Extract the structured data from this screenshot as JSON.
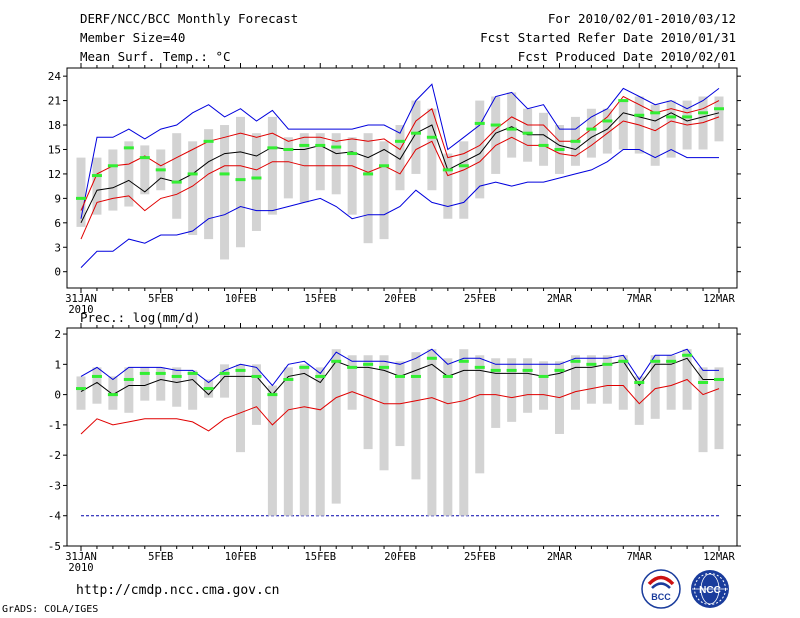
{
  "header": {
    "title": "DERF/NCC/BCC Monthly Forecast",
    "member_size": "Member Size=40",
    "variable": "Mean Surf. Temp.: °C",
    "forecast_for": "For 2010/02/01-2010/03/12",
    "started_refer": "Fcst Started Refer Date 2010/01/31",
    "produced": "Fcst Produced Date 2010/02/01"
  },
  "footer": {
    "url": "http://cmdp.ncc.cma.gov.cn",
    "credit": "GrADS: COLA/IGES",
    "logo_bcc": "BCC",
    "logo_ncc": "NCC"
  },
  "colors": {
    "box": "#d3d3d3",
    "median": "#33ee33",
    "red": "#e00000",
    "blue": "#0000dd",
    "black": "#000000",
    "floor": "#0000aa"
  },
  "chart_data": [
    {
      "type": "line",
      "title": "Mean Surf. Temp.: °C",
      "ylim": [
        -2,
        25
      ],
      "yticks": [
        0,
        3,
        6,
        9,
        12,
        15,
        18,
        21,
        24
      ],
      "xlabels": [
        "31JAN",
        "5FEB",
        "10FEB",
        "15FEB",
        "20FEB",
        "25FEB",
        "2MAR",
        "7MAR",
        "12MAR"
      ],
      "xlabel_days": [
        0,
        5,
        10,
        15,
        20,
        25,
        30,
        35,
        40
      ],
      "year_label": "2010",
      "days": [
        0,
        1,
        2,
        3,
        4,
        5,
        6,
        7,
        8,
        9,
        10,
        11,
        12,
        13,
        14,
        15,
        16,
        17,
        18,
        19,
        20,
        21,
        22,
        23,
        24,
        25,
        26,
        27,
        28,
        29,
        30,
        31,
        32,
        33,
        34,
        35,
        36,
        37,
        38,
        39,
        40
      ],
      "series": [
        {
          "name": "max",
          "color": "blue",
          "values": [
            6.5,
            16.5,
            16.5,
            17.5,
            16.3,
            17.5,
            18.0,
            19.5,
            20.5,
            19.0,
            20.0,
            18.5,
            19.8,
            17.5,
            17.5,
            17.5,
            17.5,
            17.5,
            18.0,
            18.0,
            17.0,
            21.0,
            23.0,
            15.0,
            16.5,
            18.0,
            21.5,
            22.0,
            20.0,
            20.5,
            17.5,
            17.5,
            19.0,
            20.0,
            22.5,
            21.5,
            20.5,
            21.0,
            20.0,
            21.0,
            22.5
          ]
        },
        {
          "name": "upper",
          "color": "red",
          "values": [
            7.5,
            12.0,
            13.0,
            13.2,
            14.2,
            13.0,
            14.0,
            15.0,
            16.0,
            16.5,
            17.0,
            16.5,
            17.0,
            16.0,
            16.5,
            16.5,
            16.0,
            16.3,
            16.0,
            16.3,
            15.0,
            18.5,
            20.0,
            14.0,
            14.5,
            15.5,
            17.5,
            19.0,
            18.0,
            18.0,
            16.0,
            16.0,
            17.5,
            19.0,
            21.5,
            20.5,
            19.5,
            20.0,
            19.5,
            20.0,
            21.0
          ]
        },
        {
          "name": "mean",
          "color": "black",
          "values": [
            6.0,
            10.0,
            10.3,
            11.2,
            9.8,
            11.5,
            11.0,
            12.0,
            13.5,
            14.5,
            14.7,
            14.2,
            15.3,
            15.0,
            15.0,
            15.5,
            14.5,
            14.7,
            14.0,
            15.0,
            13.8,
            17.0,
            18.0,
            12.5,
            13.5,
            14.5,
            17.0,
            17.8,
            16.8,
            16.8,
            15.5,
            15.0,
            16.5,
            17.5,
            19.5,
            19.0,
            18.5,
            19.5,
            18.5,
            19.0,
            19.5
          ]
        },
        {
          "name": "lower",
          "color": "red",
          "values": [
            4.0,
            8.5,
            9.0,
            9.3,
            7.5,
            9.0,
            9.5,
            10.5,
            12.0,
            13.0,
            13.0,
            12.5,
            13.5,
            13.5,
            13.0,
            13.0,
            13.0,
            13.0,
            12.2,
            13.0,
            12.0,
            15.0,
            16.0,
            11.8,
            12.5,
            13.5,
            15.5,
            16.5,
            15.5,
            15.5,
            14.5,
            14.2,
            15.5,
            17.0,
            18.5,
            18.0,
            17.3,
            18.5,
            18.0,
            18.3,
            19.0
          ]
        },
        {
          "name": "min",
          "color": "blue",
          "values": [
            0.5,
            2.5,
            2.5,
            4.0,
            3.5,
            4.5,
            4.5,
            5.0,
            6.5,
            7.0,
            8.0,
            7.5,
            7.5,
            8.0,
            8.5,
            9.0,
            8.0,
            6.5,
            7.0,
            7.0,
            8.0,
            10.0,
            8.5,
            8.0,
            8.5,
            10.5,
            11.0,
            10.5,
            11.0,
            11.0,
            11.5,
            12.0,
            12.5,
            13.5,
            15.0,
            15.0,
            14.0,
            15.0,
            14.0,
            14.0,
            14.0
          ]
        }
      ],
      "boxes": [
        {
          "day": 0,
          "low": 5.5,
          "high": 14.0,
          "median": 9.0
        },
        {
          "day": 1,
          "low": 7.0,
          "high": 14.0,
          "median": 11.8
        },
        {
          "day": 2,
          "low": 7.5,
          "high": 15.0,
          "median": 13.0
        },
        {
          "day": 3,
          "low": 8.0,
          "high": 16.0,
          "median": 15.2
        },
        {
          "day": 4,
          "low": 9.5,
          "high": 15.5,
          "median": 14.0
        },
        {
          "day": 5,
          "low": 10.0,
          "high": 15.0,
          "median": 12.5
        },
        {
          "day": 6,
          "low": 6.5,
          "high": 17.0,
          "median": 11.0
        },
        {
          "day": 7,
          "low": 4.5,
          "high": 16.0,
          "median": 12.0
        },
        {
          "day": 8,
          "low": 4.0,
          "high": 17.5,
          "median": 16.0
        },
        {
          "day": 9,
          "low": 1.5,
          "high": 18.0,
          "median": 12.0
        },
        {
          "day": 10,
          "low": 3.0,
          "high": 19.0,
          "median": 11.3
        },
        {
          "day": 11,
          "low": 5.0,
          "high": 17.0,
          "median": 11.5
        },
        {
          "day": 12,
          "low": 7.0,
          "high": 19.0,
          "median": 15.2
        },
        {
          "day": 13,
          "low": 9.0,
          "high": 16.5,
          "median": 15.0
        },
        {
          "day": 14,
          "low": 8.5,
          "high": 17.0,
          "median": 15.5
        },
        {
          "day": 15,
          "low": 10.0,
          "high": 17.0,
          "median": 15.5
        },
        {
          "day": 16,
          "low": 9.5,
          "high": 17.0,
          "median": 15.3
        },
        {
          "day": 17,
          "low": 7.0,
          "high": 16.5,
          "median": 14.5
        },
        {
          "day": 18,
          "low": 3.5,
          "high": 17.0,
          "median": 12.0
        },
        {
          "day": 19,
          "low": 4.0,
          "high": 16.0,
          "median": 13.0
        },
        {
          "day": 20,
          "low": 10.0,
          "high": 18.0,
          "median": 16.0
        },
        {
          "day": 21,
          "low": 12.0,
          "high": 21.0,
          "median": 17.0
        },
        {
          "day": 22,
          "low": 10.0,
          "high": 20.0,
          "median": 16.5
        },
        {
          "day": 23,
          "low": 6.5,
          "high": 14.5,
          "median": 12.5
        },
        {
          "day": 24,
          "low": 6.5,
          "high": 16.0,
          "median": 13.0
        },
        {
          "day": 25,
          "low": 9.0,
          "high": 21.0,
          "median": 18.2
        },
        {
          "day": 26,
          "low": 12.0,
          "high": 21.5,
          "median": 18.0
        },
        {
          "day": 27,
          "low": 14.0,
          "high": 22.0,
          "median": 17.5
        },
        {
          "day": 28,
          "low": 13.5,
          "high": 20.0,
          "median": 17.0
        },
        {
          "day": 29,
          "low": 13.0,
          "high": 19.5,
          "median": 15.5
        },
        {
          "day": 30,
          "low": 12.0,
          "high": 18.0,
          "median": 15.0
        },
        {
          "day": 31,
          "low": 13.0,
          "high": 19.0,
          "median": 16.0
        },
        {
          "day": 32,
          "low": 14.0,
          "high": 20.0,
          "median": 17.5
        },
        {
          "day": 33,
          "low": 14.5,
          "high": 20.0,
          "median": 18.5
        },
        {
          "day": 34,
          "low": 15.0,
          "high": 21.0,
          "median": 21.0
        },
        {
          "day": 35,
          "low": 14.5,
          "high": 21.5,
          "median": 19.2
        },
        {
          "day": 36,
          "low": 13.0,
          "high": 20.5,
          "median": 19.5
        },
        {
          "day": 37,
          "low": 14.0,
          "high": 21.0,
          "median": 19.0
        },
        {
          "day": 38,
          "low": 15.0,
          "high": 21.0,
          "median": 19.0
        },
        {
          "day": 39,
          "low": 15.0,
          "high": 21.5,
          "median": 19.5
        },
        {
          "day": 40,
          "low": 16.0,
          "high": 21.5,
          "median": 20.0
        }
      ]
    },
    {
      "type": "line",
      "title": "Prec.: log(mm/d)",
      "ylim": [
        -5,
        2.2
      ],
      "yticks": [
        -5,
        -4,
        -3,
        -2,
        -1,
        0,
        1,
        2
      ],
      "xlabels": [
        "31JAN",
        "5FEB",
        "10FEB",
        "15FEB",
        "20FEB",
        "25FEB",
        "2MAR",
        "7MAR",
        "12MAR"
      ],
      "xlabel_days": [
        0,
        5,
        10,
        15,
        20,
        25,
        30,
        35,
        40
      ],
      "year_label": "2010",
      "days": [
        0,
        1,
        2,
        3,
        4,
        5,
        6,
        7,
        8,
        9,
        10,
        11,
        12,
        13,
        14,
        15,
        16,
        17,
        18,
        19,
        20,
        21,
        22,
        23,
        24,
        25,
        26,
        27,
        28,
        29,
        30,
        31,
        32,
        33,
        34,
        35,
        36,
        37,
        38,
        39,
        40
      ],
      "floor_line": -4,
      "series": [
        {
          "name": "max",
          "color": "blue",
          "values": [
            0.6,
            0.9,
            0.5,
            0.9,
            0.9,
            0.9,
            0.8,
            0.8,
            0.4,
            0.8,
            1.0,
            0.9,
            0.3,
            1.0,
            1.1,
            0.7,
            1.4,
            1.1,
            1.1,
            1.1,
            1.0,
            1.2,
            1.5,
            1.0,
            1.2,
            1.2,
            1.0,
            1.0,
            1.0,
            1.0,
            1.0,
            1.2,
            1.2,
            1.2,
            1.3,
            0.5,
            1.3,
            1.3,
            1.5,
            0.8,
            0.8
          ]
        },
        {
          "name": "mean",
          "color": "black",
          "values": [
            0.1,
            0.4,
            0.0,
            0.3,
            0.3,
            0.5,
            0.4,
            0.5,
            0.0,
            0.6,
            0.6,
            0.6,
            0.0,
            0.6,
            0.7,
            0.4,
            1.1,
            0.9,
            0.9,
            0.8,
            0.6,
            0.8,
            1.0,
            0.6,
            0.8,
            0.8,
            0.7,
            0.7,
            0.7,
            0.6,
            0.7,
            0.9,
            0.9,
            1.0,
            1.1,
            0.3,
            1.0,
            1.0,
            1.2,
            0.5,
            0.5
          ]
        },
        {
          "name": "lower",
          "color": "red",
          "values": [
            -1.3,
            -0.8,
            -1.0,
            -0.9,
            -0.8,
            -0.8,
            -0.8,
            -0.9,
            -1.2,
            -0.8,
            -0.6,
            -0.4,
            -1.0,
            -0.5,
            -0.4,
            -0.5,
            -0.1,
            0.1,
            -0.1,
            -0.3,
            -0.3,
            -0.2,
            -0.1,
            -0.3,
            -0.2,
            0.0,
            0.0,
            -0.1,
            0.0,
            0.0,
            -0.1,
            0.1,
            0.2,
            0.3,
            0.3,
            -0.3,
            0.2,
            0.3,
            0.5,
            0.0,
            0.2
          ]
        }
      ],
      "boxes": [
        {
          "day": 0,
          "low": -0.5,
          "high": 0.6,
          "median": 0.2
        },
        {
          "day": 1,
          "low": -0.3,
          "high": 0.9,
          "median": 0.6
        },
        {
          "day": 2,
          "low": -0.5,
          "high": 0.6,
          "median": 0.0
        },
        {
          "day": 3,
          "low": -0.6,
          "high": 0.9,
          "median": 0.5
        },
        {
          "day": 4,
          "low": -0.2,
          "high": 0.9,
          "median": 0.7
        },
        {
          "day": 5,
          "low": -0.2,
          "high": 0.9,
          "median": 0.7
        },
        {
          "day": 6,
          "low": -0.4,
          "high": 0.9,
          "median": 0.6
        },
        {
          "day": 7,
          "low": -0.5,
          "high": 0.8,
          "median": 0.7
        },
        {
          "day": 8,
          "low": -0.1,
          "high": 0.5,
          "median": 0.2
        },
        {
          "day": 9,
          "low": -0.1,
          "high": 1.0,
          "median": 0.7
        },
        {
          "day": 10,
          "low": -1.9,
          "high": 1.0,
          "median": 0.8
        },
        {
          "day": 11,
          "low": -1.0,
          "high": 1.0,
          "median": 0.6
        },
        {
          "day": 12,
          "low": -4.0,
          "high": 0.3,
          "median": 0.0
        },
        {
          "day": 13,
          "low": -4.0,
          "high": 0.9,
          "median": 0.5
        },
        {
          "day": 14,
          "low": -4.0,
          "high": 1.0,
          "median": 0.9
        },
        {
          "day": 15,
          "low": -4.0,
          "high": 0.9,
          "median": 0.6
        },
        {
          "day": 16,
          "low": -3.6,
          "high": 1.5,
          "median": 1.1
        },
        {
          "day": 17,
          "low": -0.5,
          "high": 1.3,
          "median": 0.9
        },
        {
          "day": 18,
          "low": -1.8,
          "high": 1.3,
          "median": 1.0
        },
        {
          "day": 19,
          "low": -2.5,
          "high": 1.3,
          "median": 0.9
        },
        {
          "day": 20,
          "low": -1.7,
          "high": 1.1,
          "median": 0.6
        },
        {
          "day": 21,
          "low": -2.8,
          "high": 1.4,
          "median": 0.6
        },
        {
          "day": 22,
          "low": -4.0,
          "high": 1.5,
          "median": 1.2
        },
        {
          "day": 23,
          "low": -4.0,
          "high": 1.2,
          "median": 0.6
        },
        {
          "day": 24,
          "low": -4.0,
          "high": 1.5,
          "median": 1.1
        },
        {
          "day": 25,
          "low": -2.6,
          "high": 1.3,
          "median": 0.9
        },
        {
          "day": 26,
          "low": -1.1,
          "high": 1.2,
          "median": 0.8
        },
        {
          "day": 27,
          "low": -0.9,
          "high": 1.2,
          "median": 0.8
        },
        {
          "day": 28,
          "low": -0.6,
          "high": 1.2,
          "median": 0.8
        },
        {
          "day": 29,
          "low": -0.5,
          "high": 1.1,
          "median": 0.6
        },
        {
          "day": 30,
          "low": -1.3,
          "high": 1.1,
          "median": 0.8
        },
        {
          "day": 31,
          "low": -0.5,
          "high": 1.3,
          "median": 1.1
        },
        {
          "day": 32,
          "low": -0.3,
          "high": 1.3,
          "median": 1.0
        },
        {
          "day": 33,
          "low": -0.3,
          "high": 1.3,
          "median": 1.0
        },
        {
          "day": 34,
          "low": -0.5,
          "high": 1.3,
          "median": 1.1
        },
        {
          "day": 35,
          "low": -1.0,
          "high": 0.6,
          "median": 0.4
        },
        {
          "day": 36,
          "low": -0.8,
          "high": 1.3,
          "median": 1.1
        },
        {
          "day": 37,
          "low": -0.5,
          "high": 1.3,
          "median": 1.1
        },
        {
          "day": 38,
          "low": -0.5,
          "high": 1.5,
          "median": 1.3
        },
        {
          "day": 39,
          "low": -1.9,
          "high": 0.9,
          "median": 0.4
        },
        {
          "day": 40,
          "low": -1.8,
          "high": 0.9,
          "median": 0.5
        }
      ]
    }
  ]
}
